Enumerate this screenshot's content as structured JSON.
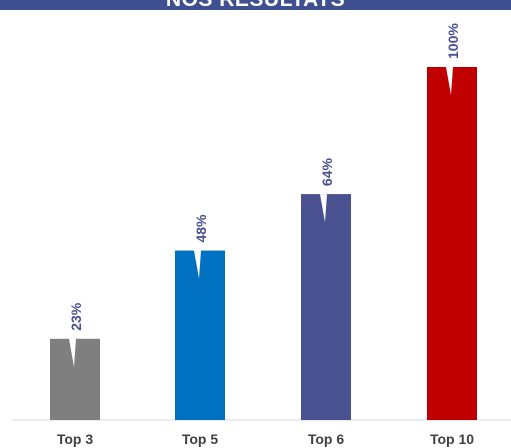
{
  "header": {
    "title": "NOS RÉSULTATS",
    "background_color": "#3f4f8f"
  },
  "chart_data": {
    "type": "bar",
    "title": "NOS RÉSULTATS",
    "xlabel": "",
    "ylabel": "",
    "categories": [
      "Top 3",
      "Top 5",
      "Top 6",
      "Top 10"
    ],
    "values": [
      23,
      48,
      64,
      100
    ],
    "value_labels": [
      "23%",
      "48%",
      "64%",
      "100%"
    ],
    "colors": [
      "#7f7f7f",
      "#0070c0",
      "#4a5190",
      "#c00000"
    ],
    "label_color": "#4a5190",
    "ylim": [
      0,
      100
    ],
    "grid": false,
    "legend": "none"
  }
}
